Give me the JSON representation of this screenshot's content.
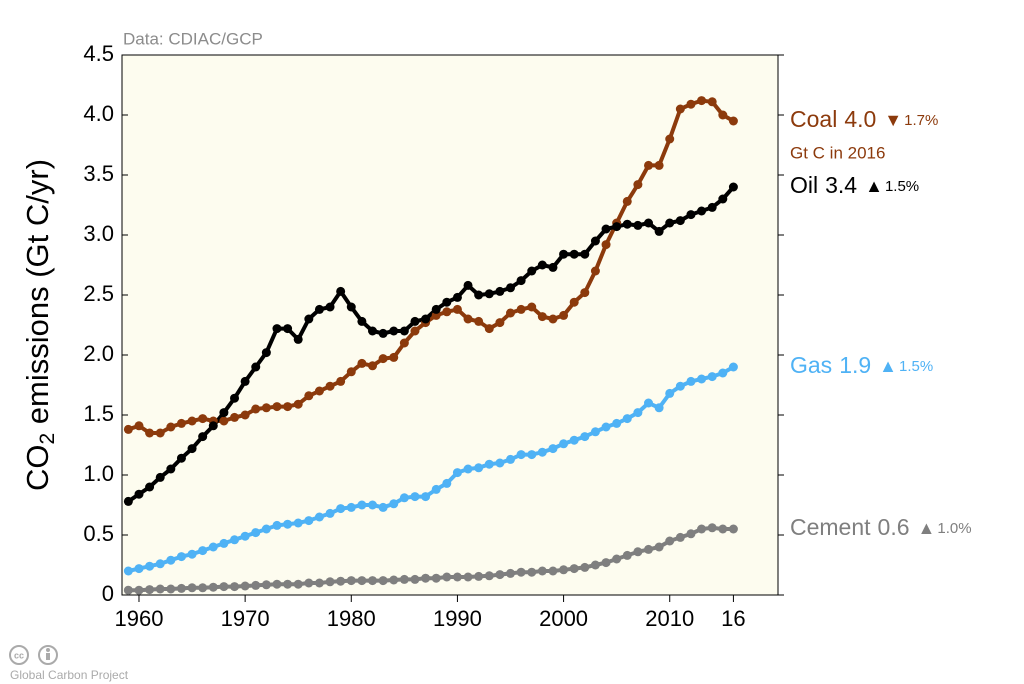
{
  "chart_data": {
    "type": "line",
    "source": "Data: CDIAC/GCP",
    "y_label": {
      "main": "CO",
      "sub": "2",
      "rest": " emissions (Gt C/yr)"
    },
    "note": "Gt C in 2016",
    "footer": "Global Carbon Project",
    "x": [
      1959,
      1960,
      1961,
      1962,
      1963,
      1964,
      1965,
      1966,
      1967,
      1968,
      1969,
      1970,
      1971,
      1972,
      1973,
      1974,
      1975,
      1976,
      1977,
      1978,
      1979,
      1980,
      1981,
      1982,
      1983,
      1984,
      1985,
      1986,
      1987,
      1988,
      1989,
      1990,
      1991,
      1992,
      1993,
      1994,
      1995,
      1996,
      1997,
      1998,
      1999,
      2000,
      2001,
      2002,
      2003,
      2004,
      2005,
      2006,
      2007,
      2008,
      2009,
      2010,
      2011,
      2012,
      2013,
      2014,
      2015,
      2016
    ],
    "xlim": [
      1958.4,
      2020.2
    ],
    "xticks": [
      1960,
      1970,
      1980,
      1990,
      2000,
      2010,
      {
        "value": 2016,
        "label": "16"
      }
    ],
    "ylim": [
      0,
      4.5
    ],
    "yticks": [
      {
        "value": 0,
        "label": "0"
      },
      {
        "value": 0.5,
        "label": "0.5"
      },
      {
        "value": 1,
        "label": "1.0"
      },
      {
        "value": 1.5,
        "label": "1.5"
      },
      {
        "value": 2,
        "label": "2.0"
      },
      {
        "value": 2.5,
        "label": "2.5"
      },
      {
        "value": 3,
        "label": "3.0"
      },
      {
        "value": 3.5,
        "label": "3.5"
      },
      {
        "value": 4,
        "label": "4.0"
      },
      {
        "value": 4.5,
        "label": "4.5"
      }
    ],
    "series": [
      {
        "name": "Coal",
        "color": "#8c3a0c",
        "end_label": "4.0",
        "arrow": "▼",
        "change": "1.7%",
        "values": [
          1.38,
          1.41,
          1.35,
          1.35,
          1.4,
          1.43,
          1.45,
          1.47,
          1.45,
          1.45,
          1.48,
          1.5,
          1.55,
          1.56,
          1.57,
          1.57,
          1.59,
          1.66,
          1.7,
          1.74,
          1.78,
          1.86,
          1.93,
          1.91,
          1.97,
          1.98,
          2.1,
          2.2,
          2.27,
          2.33,
          2.36,
          2.38,
          2.3,
          2.28,
          2.22,
          2.27,
          2.35,
          2.38,
          2.4,
          2.32,
          2.3,
          2.33,
          2.44,
          2.52,
          2.7,
          2.92,
          3.1,
          3.28,
          3.42,
          3.58,
          3.58,
          3.8,
          4.05,
          4.09,
          4.12,
          4.11,
          4.0,
          3.95
        ]
      },
      {
        "name": "Oil",
        "color": "#000000",
        "end_label": "3.4",
        "arrow": "▲",
        "change": "1.5%",
        "values": [
          0.78,
          0.84,
          0.9,
          0.98,
          1.05,
          1.14,
          1.22,
          1.32,
          1.41,
          1.52,
          1.64,
          1.78,
          1.9,
          2.02,
          2.22,
          2.22,
          2.13,
          2.3,
          2.38,
          2.4,
          2.53,
          2.4,
          2.28,
          2.2,
          2.18,
          2.2,
          2.2,
          2.28,
          2.3,
          2.38,
          2.44,
          2.48,
          2.58,
          2.5,
          2.51,
          2.53,
          2.56,
          2.62,
          2.7,
          2.75,
          2.73,
          2.84,
          2.84,
          2.84,
          2.95,
          3.05,
          3.07,
          3.09,
          3.08,
          3.1,
          3.03,
          3.1,
          3.12,
          3.17,
          3.2,
          3.23,
          3.3,
          3.4
        ]
      },
      {
        "name": "Gas",
        "color": "#4fb2f5",
        "end_label": "1.9",
        "arrow": "▲",
        "change": "1.5%",
        "values": [
          0.2,
          0.22,
          0.24,
          0.26,
          0.29,
          0.32,
          0.34,
          0.37,
          0.4,
          0.43,
          0.46,
          0.49,
          0.52,
          0.55,
          0.58,
          0.59,
          0.6,
          0.62,
          0.65,
          0.68,
          0.72,
          0.73,
          0.75,
          0.75,
          0.73,
          0.76,
          0.81,
          0.82,
          0.82,
          0.88,
          0.93,
          1.02,
          1.05,
          1.06,
          1.09,
          1.1,
          1.13,
          1.17,
          1.17,
          1.19,
          1.22,
          1.26,
          1.29,
          1.32,
          1.36,
          1.4,
          1.43,
          1.47,
          1.52,
          1.6,
          1.56,
          1.68,
          1.74,
          1.78,
          1.8,
          1.82,
          1.85,
          1.9
        ]
      },
      {
        "name": "Cement",
        "color": "#7f7f7f",
        "end_label": "0.6",
        "arrow": "▲",
        "change": "1.0%",
        "values": [
          0.04,
          0.04,
          0.045,
          0.05,
          0.05,
          0.055,
          0.06,
          0.06,
          0.065,
          0.07,
          0.07,
          0.075,
          0.08,
          0.085,
          0.09,
          0.09,
          0.09,
          0.1,
          0.1,
          0.11,
          0.115,
          0.12,
          0.12,
          0.12,
          0.12,
          0.125,
          0.13,
          0.13,
          0.14,
          0.14,
          0.15,
          0.15,
          0.15,
          0.155,
          0.16,
          0.17,
          0.18,
          0.19,
          0.19,
          0.2,
          0.2,
          0.21,
          0.22,
          0.23,
          0.25,
          0.27,
          0.3,
          0.33,
          0.36,
          0.38,
          0.4,
          0.45,
          0.48,
          0.51,
          0.55,
          0.56,
          0.55,
          0.55
        ]
      }
    ]
  }
}
